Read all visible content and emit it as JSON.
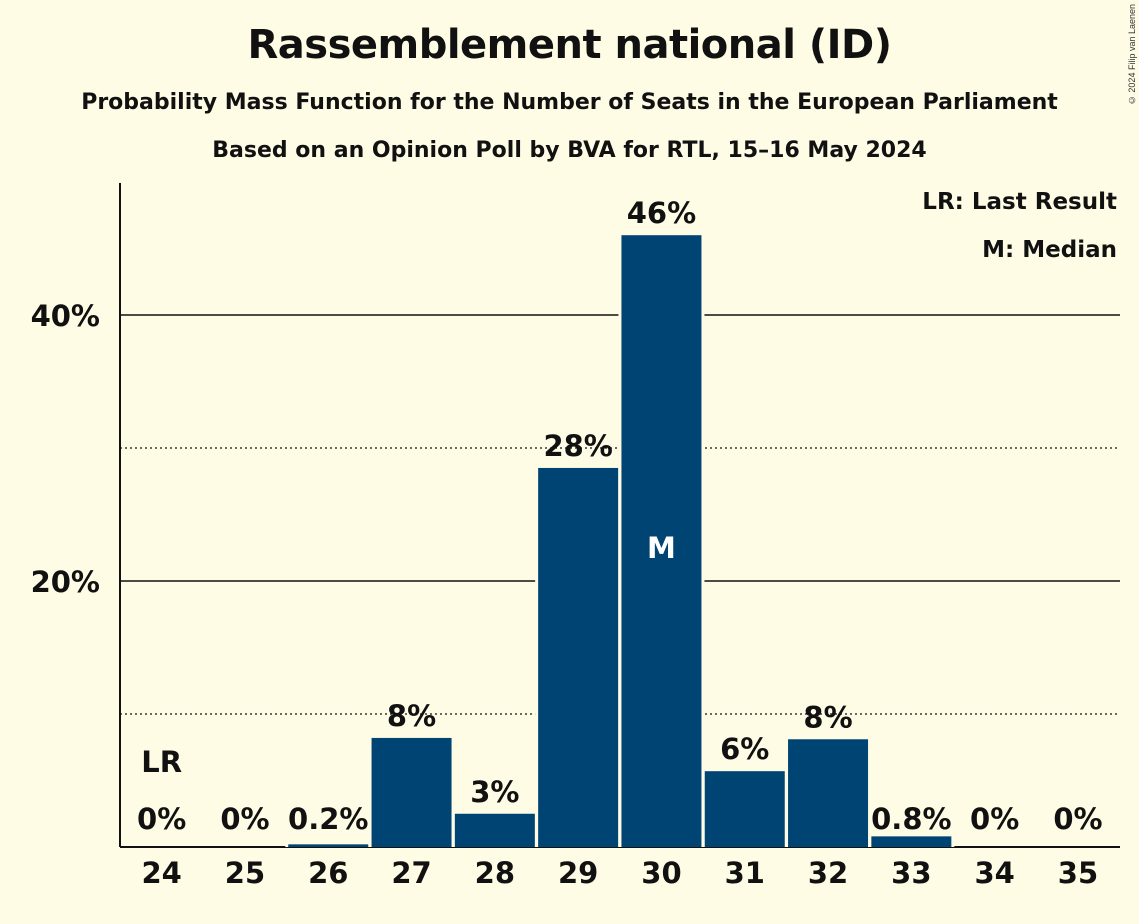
{
  "chart_data": {
    "type": "bar",
    "title": "Rassemblement national (ID)",
    "subtitle": "Probability Mass Function for the Number of Seats in the European Parliament",
    "subtitle2": "Based on an Opinion Poll by BVA for RTL, 15–16 May 2024",
    "copyright": "© 2024 Filip van Laenen",
    "categories": [
      "24",
      "25",
      "26",
      "27",
      "28",
      "29",
      "30",
      "31",
      "32",
      "33",
      "34",
      "35"
    ],
    "values": [
      0,
      0,
      0.2,
      8.2,
      2.5,
      28.5,
      46.0,
      5.7,
      8.1,
      0.8,
      0,
      0
    ],
    "data_labels": [
      "0%",
      "0%",
      "0.2%",
      "8%",
      "3%",
      "28%",
      "46%",
      "6%",
      "8%",
      "0.8%",
      "0%",
      "0%"
    ],
    "ylim": [
      0,
      50
    ],
    "y_ticks_major": [
      {
        "value": 20,
        "label": "20%"
      },
      {
        "value": 40,
        "label": "40%"
      }
    ],
    "y_ticks_minor": [
      10,
      30
    ],
    "last_result": {
      "category": "24",
      "label": "LR"
    },
    "median": {
      "category": "30",
      "label": "M"
    },
    "legend": [
      "LR: Last Result",
      "M: Median"
    ],
    "colors": {
      "bar": "#004474",
      "background": "#fefce5",
      "median_text": "#ffffff"
    }
  }
}
